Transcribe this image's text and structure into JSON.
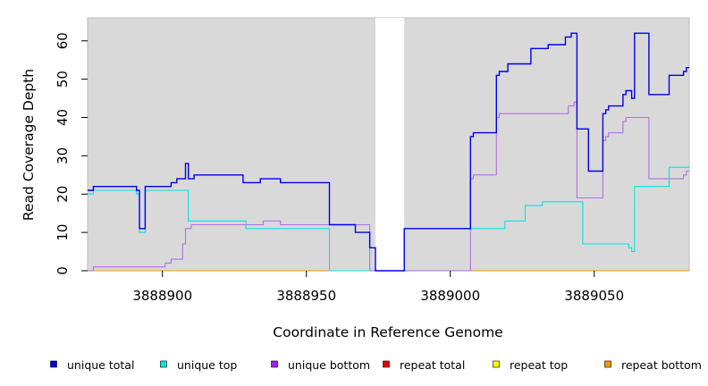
{
  "chart_data": {
    "type": "line",
    "xlabel": "Coordinate in Reference Genome",
    "ylabel": "Read Coverage Depth",
    "xlim": [
      3888874,
      3889083
    ],
    "ylim": [
      0,
      66
    ],
    "xticks": [
      3888900,
      3888950,
      3889000,
      3889050
    ],
    "xtick_labels": [
      "3888900",
      "3888950",
      "3889000",
      "3889050"
    ],
    "yticks": [
      0,
      10,
      20,
      30,
      40,
      50,
      60
    ],
    "ytick_labels": [
      "0",
      "10",
      "20",
      "30",
      "40",
      "50",
      "60"
    ],
    "background": "#d9d9d9",
    "gap": [
      3888974,
      3888984
    ],
    "legend_placement": "bottom",
    "series": [
      {
        "name": "unique total",
        "color": "#0000ee",
        "points": [
          [
            3888874,
            21
          ],
          [
            3888876,
            22
          ],
          [
            3888891,
            21
          ],
          [
            3888892,
            11
          ],
          [
            3888894,
            22
          ],
          [
            3888903,
            23
          ],
          [
            3888905,
            24
          ],
          [
            3888908,
            28
          ],
          [
            3888909,
            24
          ],
          [
            3888911,
            25
          ],
          [
            3888928,
            23
          ],
          [
            3888934,
            24
          ],
          [
            3888941,
            23
          ],
          [
            3888958,
            12
          ],
          [
            3888967,
            10
          ],
          [
            3888972,
            6
          ],
          [
            3888974,
            0
          ],
          [
            3888984,
            11
          ],
          [
            3889007,
            35
          ],
          [
            3889008,
            36
          ],
          [
            3889016,
            51
          ],
          [
            3889017,
            52
          ],
          [
            3889020,
            54
          ],
          [
            3889028,
            58
          ],
          [
            3889034,
            59
          ],
          [
            3889040,
            61
          ],
          [
            3889042,
            62
          ],
          [
            3889044,
            37
          ],
          [
            3889048,
            26
          ],
          [
            3889053,
            41
          ],
          [
            3889054,
            42
          ],
          [
            3889055,
            43
          ],
          [
            3889060,
            46
          ],
          [
            3889061,
            47
          ],
          [
            3889063,
            45
          ],
          [
            3889064,
            62
          ],
          [
            3889069,
            46
          ],
          [
            3889076,
            51
          ],
          [
            3889081,
            52
          ],
          [
            3889082,
            53
          ],
          [
            3889083,
            53
          ]
        ]
      },
      {
        "name": "unique top",
        "color": "#00e5e5",
        "points": [
          [
            3888874,
            20
          ],
          [
            3888876,
            21
          ],
          [
            3888891,
            20
          ],
          [
            3888892,
            10
          ],
          [
            3888894,
            21
          ],
          [
            3888909,
            13
          ],
          [
            3888929,
            11
          ],
          [
            3888958,
            0
          ],
          [
            3888984,
            11
          ],
          [
            3889007,
            11
          ],
          [
            3889019,
            13
          ],
          [
            3889026,
            17
          ],
          [
            3889032,
            18
          ],
          [
            3889046,
            7
          ],
          [
            3889062,
            6
          ],
          [
            3889063,
            5
          ],
          [
            3889064,
            22
          ],
          [
            3889076,
            27
          ],
          [
            3889083,
            27
          ]
        ]
      },
      {
        "name": "unique bottom",
        "color": "#b070e0",
        "points": [
          [
            3888874,
            0
          ],
          [
            3888876,
            1
          ],
          [
            3888901,
            2
          ],
          [
            3888903,
            3
          ],
          [
            3888907,
            7
          ],
          [
            3888908,
            11
          ],
          [
            3888910,
            12
          ],
          [
            3888935,
            13
          ],
          [
            3888941,
            12
          ],
          [
            3888958,
            12
          ],
          [
            3888972,
            0
          ],
          [
            3889007,
            24
          ],
          [
            3889008,
            25
          ],
          [
            3889016,
            40
          ],
          [
            3889017,
            41
          ],
          [
            3889041,
            43
          ],
          [
            3889043,
            44
          ],
          [
            3889044,
            19
          ],
          [
            3889053,
            34
          ],
          [
            3889054,
            35
          ],
          [
            3889055,
            36
          ],
          [
            3889060,
            39
          ],
          [
            3889061,
            40
          ],
          [
            3889069,
            24
          ],
          [
            3889081,
            25
          ],
          [
            3889082,
            26
          ],
          [
            3889083,
            26
          ]
        ]
      },
      {
        "name": "repeat total",
        "color": "#ee0000",
        "points": [
          [
            3888874,
            0
          ],
          [
            3889083,
            0
          ]
        ]
      },
      {
        "name": "repeat top",
        "color": "#ffff00",
        "points": [
          [
            3888874,
            0
          ],
          [
            3889083,
            0
          ]
        ]
      },
      {
        "name": "repeat bottom",
        "color": "#ee9a00",
        "points": [
          [
            3888874,
            0
          ],
          [
            3889083,
            0
          ]
        ]
      }
    ]
  }
}
